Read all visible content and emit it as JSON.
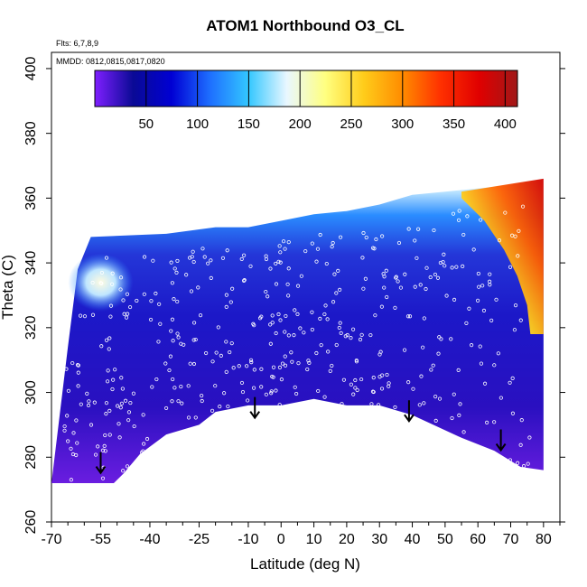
{
  "chart_data": {
    "type": "heatmap",
    "title": "ATOM1 Northbound O3_CL",
    "xlabel": "Latitude (deg N)",
    "ylabel": "Theta (C)",
    "xlim": [
      -70,
      85
    ],
    "ylim": [
      260,
      405
    ],
    "x_ticks": [
      -70,
      -55,
      -40,
      -25,
      -10,
      0,
      10,
      20,
      30,
      40,
      50,
      60,
      70,
      80
    ],
    "y_ticks": [
      260,
      280,
      300,
      320,
      340,
      360,
      380,
      400
    ],
    "annotations": {
      "flights": "Flts: 6,7,8,9",
      "dates": "MMDD: 0812,0815,0817,0820"
    },
    "colorbar": {
      "range": [
        0,
        412
      ],
      "ticks": [
        50,
        100,
        150,
        200,
        250,
        300,
        350,
        400
      ],
      "colors": [
        "#7f1fff",
        "#0a0a95",
        "#0000d4",
        "#1e6fff",
        "#33c7ff",
        "#e9f7ff",
        "#ffff80",
        "#ffcc1a",
        "#ff8c00",
        "#ff3000",
        "#e00000",
        "#a01818"
      ]
    },
    "series": [
      {
        "name": "Lower boundary of sampled curtain",
        "points": [
          [
            -70,
            272
          ],
          [
            -51,
            272
          ],
          [
            -48,
            275
          ],
          [
            -43,
            281
          ],
          [
            -35,
            287
          ],
          [
            -25,
            290
          ],
          [
            -20,
            294
          ],
          [
            -10,
            296
          ],
          [
            0,
            296
          ],
          [
            10,
            298
          ],
          [
            20,
            296
          ],
          [
            30,
            296
          ],
          [
            40,
            293
          ],
          [
            55,
            286
          ],
          [
            65,
            282
          ],
          [
            73,
            277
          ],
          [
            80,
            276
          ]
        ]
      },
      {
        "name": "Upper boundary of sampled curtain",
        "points": [
          [
            -65,
            314
          ],
          [
            -62,
            338
          ],
          [
            -58,
            348
          ],
          [
            -35,
            349
          ],
          [
            -20,
            351
          ],
          [
            -10,
            351
          ],
          [
            0,
            353
          ],
          [
            10,
            355
          ],
          [
            20,
            356
          ],
          [
            30,
            358
          ],
          [
            40,
            361
          ],
          [
            50,
            362
          ],
          [
            60,
            363
          ],
          [
            70,
            364
          ],
          [
            80,
            366
          ]
        ]
      },
      {
        "name": "High-O3 upper region (north)",
        "points": [
          [
            55,
            360
          ],
          [
            62,
            353
          ],
          [
            68,
            344
          ],
          [
            72,
            336
          ],
          [
            75,
            327
          ],
          [
            76,
            318
          ]
        ]
      },
      {
        "name": "Arrow markers (latitude, theta)",
        "points": [
          [
            -55,
            276
          ],
          [
            -8,
            293
          ],
          [
            39,
            292
          ],
          [
            67,
            283
          ]
        ]
      }
    ]
  }
}
